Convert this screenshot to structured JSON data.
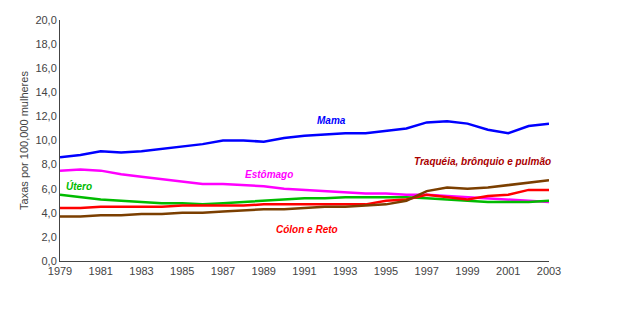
{
  "chart_data": {
    "type": "line",
    "x": [
      1979,
      1980,
      1981,
      1982,
      1983,
      1984,
      1985,
      1986,
      1987,
      1988,
      1989,
      1990,
      1991,
      1992,
      1993,
      1994,
      1995,
      1996,
      1997,
      1998,
      1999,
      2000,
      2001,
      2002,
      2003
    ],
    "series": [
      {
        "color": "#0000FF",
        "values": [
          8.6,
          8.8,
          9.1,
          9.0,
          9.1,
          9.3,
          9.5,
          9.7,
          10.0,
          10.0,
          9.9,
          10.2,
          10.4,
          10.5,
          10.6,
          10.6,
          10.8,
          11.0,
          11.5,
          11.6,
          11.4,
          10.9,
          10.6,
          11.2,
          11.4
        ]
      },
      {
        "color": "#FF00FF",
        "values": [
          7.5,
          7.6,
          7.5,
          7.2,
          7.0,
          6.8,
          6.6,
          6.4,
          6.4,
          6.3,
          6.2,
          6.0,
          5.9,
          5.8,
          5.7,
          5.6,
          5.6,
          5.5,
          5.5,
          5.4,
          5.3,
          5.2,
          5.1,
          5.0,
          4.9
        ]
      },
      {
        "color": "#00BB00",
        "values": [
          5.5,
          5.3,
          5.1,
          5.0,
          4.9,
          4.8,
          4.8,
          4.7,
          4.8,
          4.9,
          5.0,
          5.1,
          5.2,
          5.2,
          5.3,
          5.3,
          5.3,
          5.3,
          5.2,
          5.1,
          5.0,
          4.9,
          4.9,
          4.9,
          5.0
        ]
      },
      {
        "color": "#FF0000",
        "values": [
          4.4,
          4.4,
          4.5,
          4.5,
          4.5,
          4.5,
          4.6,
          4.6,
          4.6,
          4.6,
          4.7,
          4.7,
          4.7,
          4.7,
          4.7,
          4.7,
          5.0,
          5.1,
          5.5,
          5.3,
          5.1,
          5.4,
          5.5,
          5.9,
          5.9
        ]
      },
      {
        "color": "#7B3F00",
        "values": [
          3.7,
          3.7,
          3.8,
          3.8,
          3.9,
          3.9,
          4.0,
          4.0,
          4.1,
          4.2,
          4.3,
          4.3,
          4.4,
          4.5,
          4.5,
          4.6,
          4.7,
          5.0,
          5.8,
          6.1,
          6.0,
          6.1,
          6.3,
          6.5,
          6.7
        ]
      }
    ],
    "annotations": [
      {
        "text": "Mama",
        "x": 1991.5,
        "y": 11.0,
        "color": "#0000FF"
      },
      {
        "text": "Estômago",
        "x": 1988.0,
        "y": 6.55,
        "color": "#FF00FF"
      },
      {
        "text": "Útero",
        "x": 1979.2,
        "y": 5.55,
        "color": "#00BB00"
      },
      {
        "text": "Cólon e Reto",
        "x": 1989.5,
        "y": 2.0,
        "color": "#FF0000"
      },
      {
        "text": "Traquéia, brônquio e pulmão",
        "x": 1996.3,
        "y": 7.6,
        "color": "#AA0000"
      }
    ],
    "ylabel": "Taxas por 100,000 mulheres",
    "xlim": [
      1979,
      2003
    ],
    "xticks": [
      1979,
      1981,
      1983,
      1985,
      1987,
      1989,
      1991,
      1993,
      1995,
      1997,
      1999,
      2001,
      2003
    ],
    "ylim": [
      0,
      20
    ],
    "yticks": [
      {
        "value": 0.0,
        "label": "0,0"
      },
      {
        "value": 2.0,
        "label": "2,0"
      },
      {
        "value": 4.0,
        "label": "4,0"
      },
      {
        "value": 6.0,
        "label": "6,0"
      },
      {
        "value": 8.0,
        "label": "8,0"
      },
      {
        "value": 10.0,
        "label": "10,0"
      },
      {
        "value": 12.0,
        "label": "12,0"
      },
      {
        "value": 14.0,
        "label": "14,0"
      },
      {
        "value": 16.0,
        "label": "16,0"
      },
      {
        "value": 18.0,
        "label": "18,0"
      },
      {
        "value": 20.0,
        "label": "20,0"
      }
    ],
    "grid": false
  }
}
